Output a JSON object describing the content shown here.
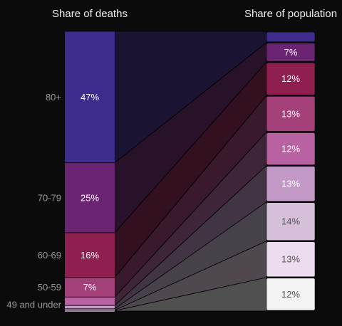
{
  "chart_data": {
    "type": "sankey-stack",
    "categories": [
      "80+",
      "70-79",
      "60-69",
      "50-59",
      "49 and under",
      null,
      null,
      null,
      null
    ],
    "colors": [
      "#3f2a8e",
      "#6b2472",
      "#8e1f4f",
      "#a33f79",
      "#b862a1",
      "#c299c6",
      "#d5bfd9",
      "#eddcef",
      "#f3f3f3"
    ],
    "series": [
      {
        "name": "Share of deaths",
        "values": [
          47,
          25,
          16,
          7,
          3,
          1.2,
          0.5,
          0.2,
          0.1
        ],
        "value_labels": [
          "47%",
          "25%",
          "16%",
          "7%",
          null,
          null,
          null,
          null,
          null
        ]
      },
      {
        "name": "Share of population",
        "values": [
          4,
          7,
          12,
          13,
          12,
          13,
          14,
          13,
          12
        ],
        "value_labels": [
          null,
          "7%",
          "12%",
          "13%",
          "12%",
          "13%",
          "14%",
          "13%",
          "12%"
        ]
      }
    ]
  }
}
